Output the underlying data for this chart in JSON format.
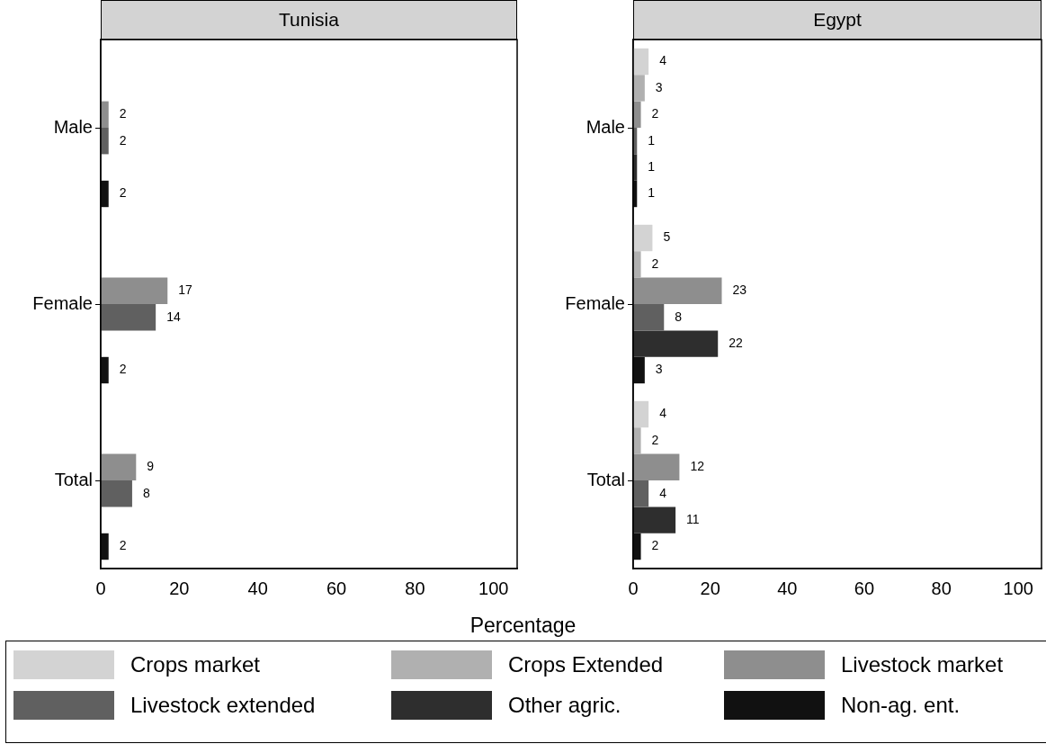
{
  "chart_data": [
    {
      "type": "bar",
      "orientation": "horizontal",
      "title": "Tunisia",
      "xlabel": "Percentage",
      "categories": [
        "Male",
        "Female",
        "Total"
      ],
      "xlim": [
        0,
        106
      ],
      "xticks": [
        0,
        20,
        40,
        60,
        80,
        100
      ],
      "grid": false,
      "data_labels": true,
      "series": [
        {
          "color": "#d3d3d3",
          "values": [
            null,
            null,
            null
          ]
        },
        {
          "color": "#b0b0b0",
          "values": [
            null,
            null,
            null
          ]
        },
        {
          "color": "#8e8e8e",
          "values": [
            2,
            17,
            9
          ]
        },
        {
          "color": "#606060",
          "values": [
            2,
            14,
            8
          ]
        },
        {
          "color": "#2e2e2e",
          "values": [
            null,
            null,
            null
          ]
        },
        {
          "color": "#111111",
          "values": [
            2,
            2,
            2
          ]
        }
      ]
    },
    {
      "type": "bar",
      "orientation": "horizontal",
      "title": "Egypt",
      "categories": [
        "Male",
        "Female",
        "Total"
      ],
      "xlim": [
        0,
        106
      ],
      "xticks": [
        0,
        20,
        40,
        60,
        80,
        100
      ],
      "grid": false,
      "legend": "bottom",
      "data_labels": true,
      "series": [
        {
          "name": "Crops market",
          "color": "#d3d3d3",
          "values": [
            4,
            5,
            4
          ]
        },
        {
          "name": "Crops Extended",
          "color": "#b0b0b0",
          "values": [
            3,
            2,
            2
          ]
        },
        {
          "name": "Livestock market",
          "color": "#8e8e8e",
          "values": [
            2,
            23,
            12
          ]
        },
        {
          "name": "Livestock extended",
          "color": "#606060",
          "values": [
            1,
            8,
            4
          ]
        },
        {
          "name": "Other agric.",
          "color": "#2e2e2e",
          "values": [
            1,
            22,
            11
          ]
        },
        {
          "name": "Non-ag. ent.",
          "color": "#111111",
          "values": [
            1,
            3,
            2
          ]
        }
      ]
    }
  ]
}
